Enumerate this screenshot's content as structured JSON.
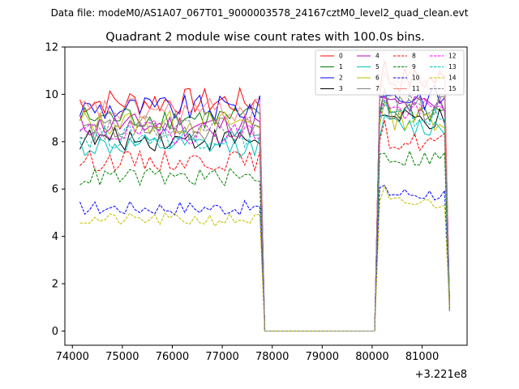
{
  "chart_data": {
    "type": "line",
    "suptitle": "Data file: modeM0/AS1A07_067T01_9000003578_24167cztM0_level2_quad_clean.evt",
    "title": "Quadrant 2 module wise count rates with 100.0s bins.",
    "xlabel": "",
    "ylabel": "",
    "x_offset_label": "+3.221e8",
    "xlim": [
      73850,
      81900
    ],
    "ylim": [
      -0.6,
      12
    ],
    "xticks": [
      74000,
      75000,
      76000,
      77000,
      78000,
      79000,
      80000,
      81000
    ],
    "yticks": [
      0,
      2,
      4,
      6,
      8,
      10,
      12
    ],
    "legend_position": "top-right",
    "segments": [
      {
        "x_start": 74150,
        "x_end": 77750,
        "step": 100
      },
      {
        "x_start": 80150,
        "x_end": 81450,
        "step": 100
      }
    ],
    "gap": {
      "x_start": 77850,
      "x_end": 80050,
      "value": 0
    },
    "end_point": {
      "x": 81550
    },
    "series": [
      {
        "name": "0",
        "color": "#ff0000",
        "dash": "solid",
        "mean1": 9.7,
        "mean2": 10.6,
        "end_value": 1.2
      },
      {
        "name": "1",
        "color": "#008000",
        "dash": "solid",
        "mean1": 9.0,
        "mean2": 9.3,
        "end_value": 1.1
      },
      {
        "name": "2",
        "color": "#0000ff",
        "dash": "solid",
        "mean1": 9.4,
        "mean2": 9.9,
        "end_value": 1.2
      },
      {
        "name": "3",
        "color": "#000000",
        "dash": "solid",
        "mean1": 8.1,
        "mean2": 8.9,
        "end_value": 1.0
      },
      {
        "name": "4",
        "color": "#bf00bf",
        "dash": "solid",
        "mean1": 8.7,
        "mean2": 9.5,
        "end_value": 1.1
      },
      {
        "name": "5",
        "color": "#00bfbf",
        "dash": "solid",
        "mean1": 7.8,
        "mean2": 8.6,
        "end_value": 1.0
      },
      {
        "name": "6",
        "color": "#bfbf00",
        "dash": "solid",
        "mean1": 8.8,
        "mean2": 9.0,
        "end_value": 1.1
      },
      {
        "name": "7",
        "color": "#808080",
        "dash": "solid",
        "mean1": 8.5,
        "mean2": 9.4,
        "end_value": 1.0
      },
      {
        "name": "8",
        "color": "#ff0000",
        "dash": "dashed",
        "mean1": 7.2,
        "mean2": 8.0,
        "end_value": 0.9
      },
      {
        "name": "9",
        "color": "#008000",
        "dash": "dashed",
        "mean1": 6.5,
        "mean2": 7.3,
        "end_value": 0.9
      },
      {
        "name": "10",
        "color": "#0000ff",
        "dash": "dashed",
        "mean1": 5.2,
        "mean2": 5.8,
        "end_value": 0.8
      },
      {
        "name": "11",
        "color": "#ff8080",
        "dash": "solid",
        "mean1": 9.3,
        "mean2": 10.5,
        "end_value": 1.1
      },
      {
        "name": "12",
        "color": "#ff00ff",
        "dash": "dashed",
        "mean1": 8.4,
        "mean2": 9.3,
        "end_value": 1.0
      },
      {
        "name": "13",
        "color": "#00bfbf",
        "dash": "dashed",
        "mean1": 8.2,
        "mean2": 9.0,
        "end_value": 1.0
      },
      {
        "name": "14",
        "color": "#bfbf00",
        "dash": "dashed",
        "mean1": 4.7,
        "mean2": 5.4,
        "end_value": 0.8
      },
      {
        "name": "15",
        "color": "#808080",
        "dash": "dashed",
        "mean1": 8.6,
        "mean2": 9.5,
        "end_value": 1.0
      }
    ]
  }
}
